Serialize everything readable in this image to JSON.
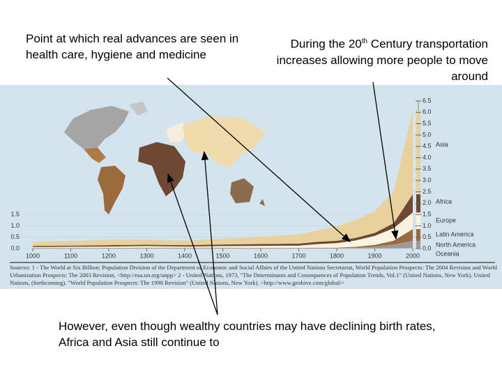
{
  "annotations": {
    "top_left": "Point at which real advances are seen in health care, hygiene and medicine",
    "top_right_start": "During the 20",
    "top_right_sup": "th",
    "top_right_end": " Century transportation increases allowing more people to move around",
    "bottom": "However, even though wealthy countries may have declining birth rates, Africa and Asia still continue to"
  },
  "chart_data": {
    "type": "stacked_area",
    "x": [
      1000,
      1100,
      1200,
      1300,
      1400,
      1500,
      1600,
      1700,
      1750,
      1800,
      1850,
      1900,
      1950,
      2000
    ],
    "series": [
      {
        "name": "Oceania",
        "color": "#c9b59a",
        "values": [
          0.01,
          0.01,
          0.01,
          0.01,
          0.01,
          0.01,
          0.01,
          0.01,
          0.01,
          0.01,
          0.01,
          0.01,
          0.01,
          0.03
        ]
      },
      {
        "name": "North America",
        "color": "#9a9a9a",
        "values": [
          0.01,
          0.01,
          0.01,
          0.01,
          0.01,
          0.01,
          0.01,
          0.01,
          0.01,
          0.01,
          0.03,
          0.08,
          0.17,
          0.31
        ]
      },
      {
        "name": "Latin America",
        "color": "#9b6b3e",
        "values": [
          0.01,
          0.01,
          0.01,
          0.02,
          0.02,
          0.02,
          0.01,
          0.01,
          0.02,
          0.02,
          0.04,
          0.07,
          0.17,
          0.52
        ]
      },
      {
        "name": "Europe",
        "color": "#fbf3e0",
        "values": [
          0.04,
          0.05,
          0.06,
          0.07,
          0.05,
          0.07,
          0.09,
          0.1,
          0.16,
          0.2,
          0.28,
          0.4,
          0.55,
          0.73
        ]
      },
      {
        "name": "Africa",
        "color": "#6e4832",
        "values": [
          0.05,
          0.05,
          0.06,
          0.06,
          0.06,
          0.07,
          0.08,
          0.09,
          0.1,
          0.1,
          0.11,
          0.13,
          0.22,
          0.8
        ]
      },
      {
        "name": "Asia",
        "color": "#e8d19c",
        "values": [
          0.18,
          0.2,
          0.24,
          0.22,
          0.2,
          0.25,
          0.32,
          0.4,
          0.5,
          0.63,
          0.8,
          0.95,
          1.4,
          3.7
        ]
      }
    ],
    "legend_order": [
      "Asia",
      "Africa",
      "Europe",
      "Latin America",
      "North America",
      "Oceania"
    ],
    "xlim": [
      1000,
      2000
    ],
    "xticks": [
      1000,
      1100,
      1200,
      1300,
      1400,
      1500,
      1600,
      1700,
      1800,
      1900,
      2000
    ],
    "ylim": [
      0,
      6.5
    ],
    "yticks": [
      {
        "value": 0,
        "label": "0.0"
      },
      {
        "value": 0.5,
        "label": "0.5"
      },
      {
        "value": 1,
        "label": "1.0"
      },
      {
        "value": 1.5,
        "label": "1.5"
      },
      {
        "value": 2,
        "label": "2.0"
      },
      {
        "value": 2.5,
        "label": "2.5"
      },
      {
        "value": 3,
        "label": "3.0"
      },
      {
        "value": 3.5,
        "label": "3.5"
      },
      {
        "value": 4,
        "label": "4.0"
      },
      {
        "value": 4.5,
        "label": "4.5"
      },
      {
        "value": 5,
        "label": "5.0"
      },
      {
        "value": 5.5,
        "label": "5.5"
      },
      {
        "value": 6,
        "label": "6.0"
      },
      {
        "value": 6.5,
        "label": "6.5"
      }
    ],
    "y2lim": [
      0,
      6.5
    ],
    "y2ticks": [
      {
        "value": 0,
        "label": "0.0"
      },
      {
        "value": 0.5,
        "label": "0.5"
      },
      {
        "value": 1,
        "label": "1.0"
      },
      {
        "value": 1.5,
        "label": "1.5"
      }
    ],
    "sources": "Sources: 1 - The World at Six Billion; Population Division of the Department of Economic and Social Affairs of the United Nations Secretariat, World Population Prospects: The 2004 Revision and World Urbanization Prospects: The 2003 Revision, <http://esa.un.org/unpp> 2 - United Nations, 1973, \"The Determinants and Consequences of Population Trends, Vol.1\" (United Nations, New York). United Nations, (forthcoming). \"World Population Prospects: The 1998 Revision\" (United Nations, New York). <http://www.geohive.com/global/>"
  }
}
